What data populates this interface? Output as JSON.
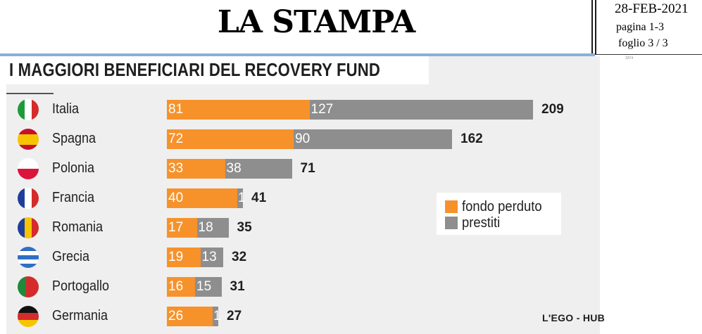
{
  "header": {
    "masthead": "LA STAMPA",
    "date": "28-FEB-2021",
    "page": "pagina 1-3",
    "sheet": "foglio  3 / 3",
    "code": "3374"
  },
  "colors": {
    "fondo_perduto": "#f7922b",
    "prestiti": "#8e8e8e",
    "panel": "#efefef",
    "header_rule": "#8ab0d6"
  },
  "chart_data": {
    "type": "bar",
    "orientation": "horizontal",
    "stacked": true,
    "title": "I MAGGIORI BENEFICIARI DEL RECOVERY FUND",
    "categories": [
      "Italia",
      "Spagna",
      "Polonia",
      "Francia",
      "Romania",
      "Grecia",
      "Portogallo",
      "Germania"
    ],
    "flags": [
      "italy-flag-icon",
      "spain-flag-icon",
      "poland-flag-icon",
      "france-flag-icon",
      "romania-flag-icon",
      "greece-flag-icon",
      "portugal-flag-icon",
      "germany-flag-icon"
    ],
    "series": [
      {
        "name": "fondo perduto",
        "values": [
          81,
          72,
          33,
          40,
          17,
          19,
          16,
          26
        ]
      },
      {
        "name": "prestiti",
        "values": [
          127,
          90,
          38,
          1,
          18,
          13,
          15,
          1
        ]
      }
    ],
    "totals": [
      209,
      162,
      71,
      41,
      35,
      32,
      31,
      27
    ],
    "legend_position": "right",
    "grid": false,
    "credit": "L'EGO - HUB"
  }
}
